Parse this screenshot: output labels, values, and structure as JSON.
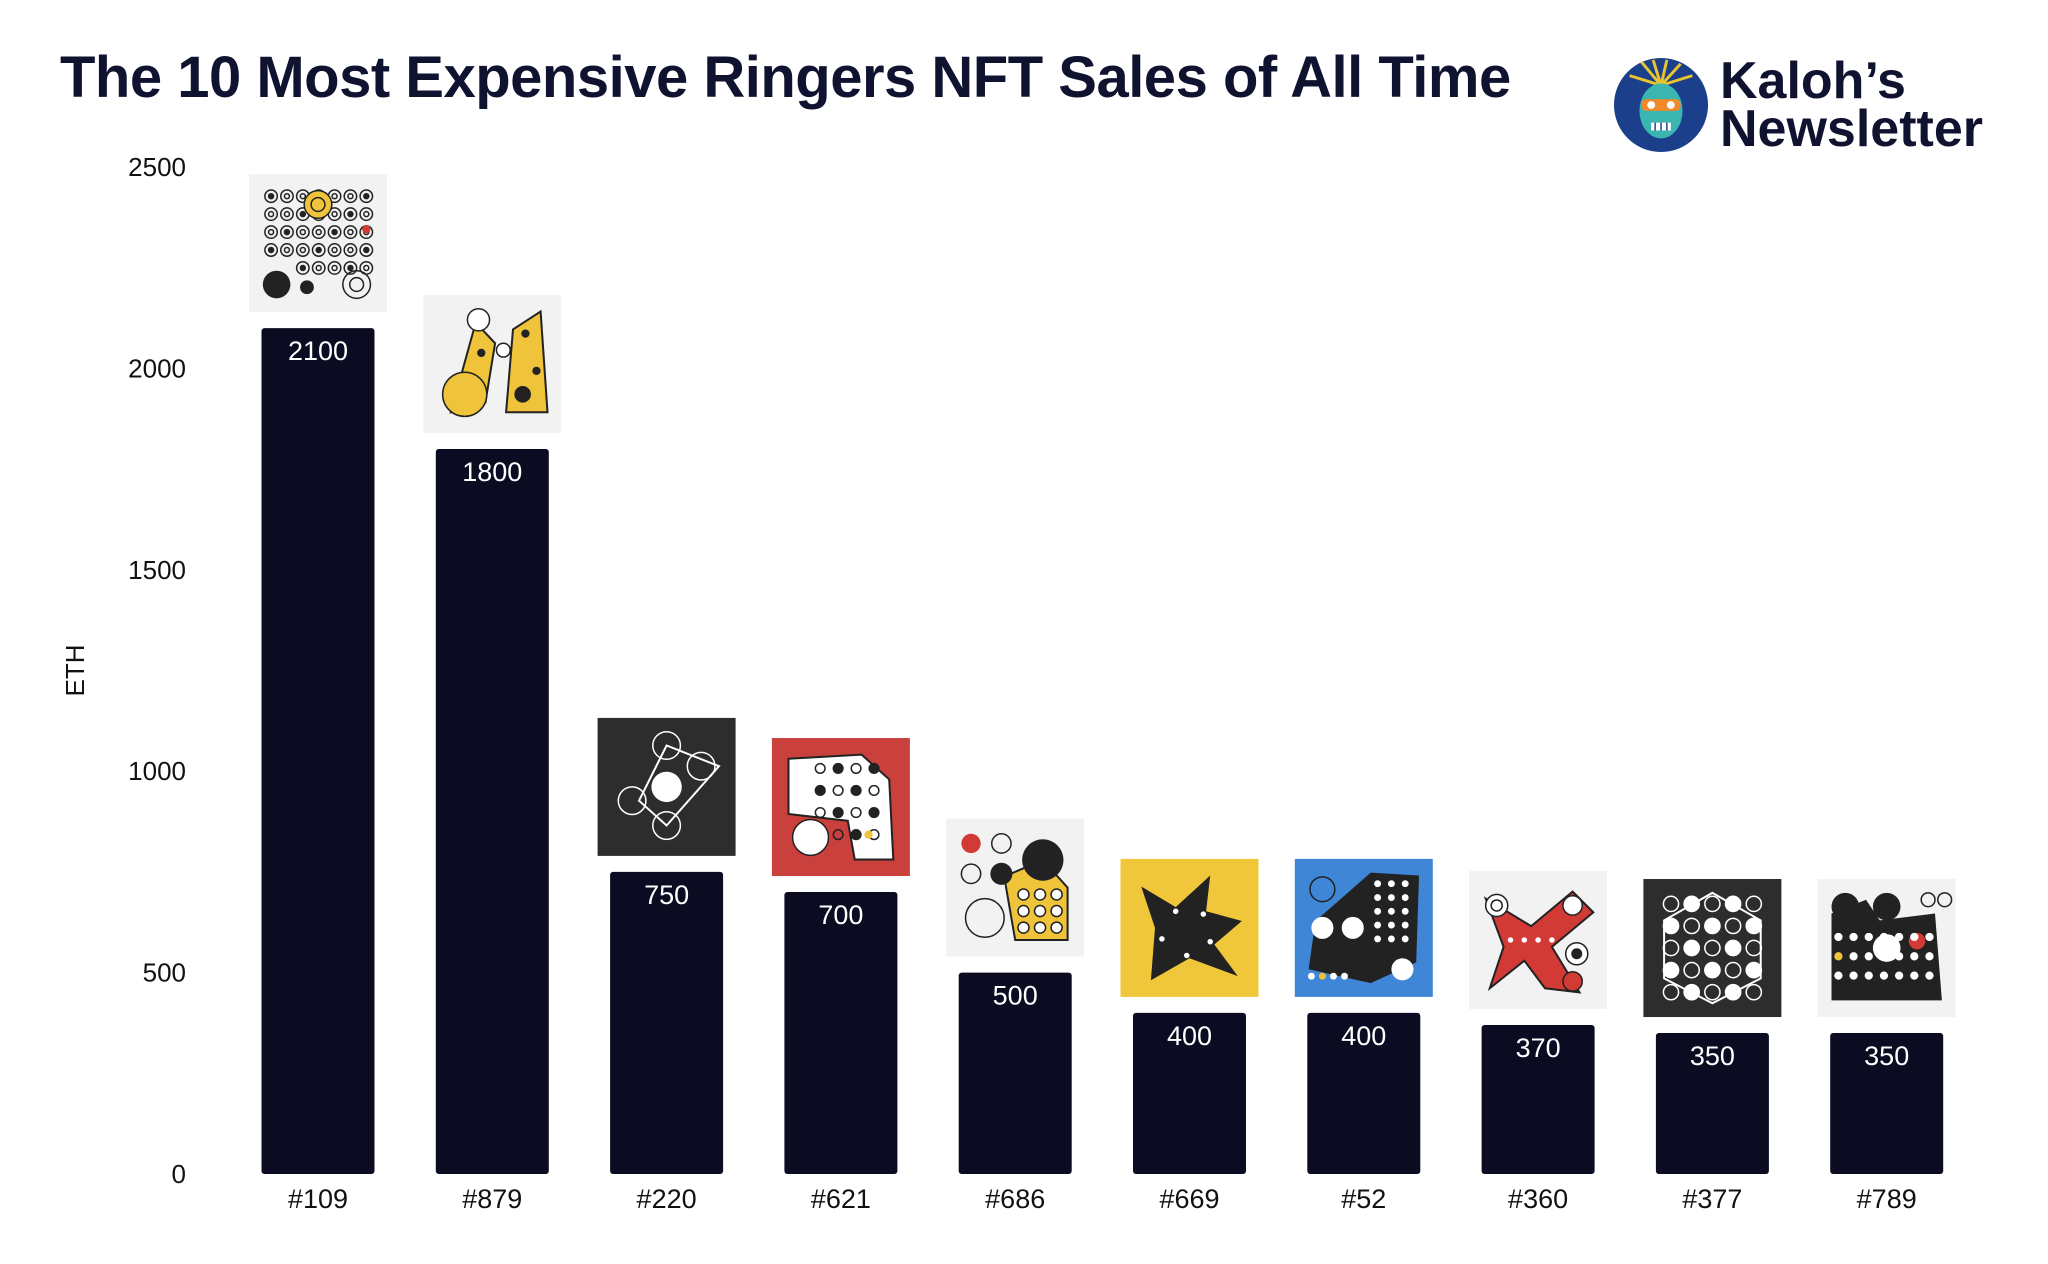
{
  "header": {
    "title": "The 10 Most Expensive Ringers NFT Sales of All Time",
    "brand_line1": "Kaloh’s",
    "brand_line2": "Newsletter"
  },
  "colors": {
    "bar": "#0b0b22",
    "title": "#0f1330",
    "axis_text": "#111111"
  },
  "chart_data": {
    "type": "bar",
    "title": "The 10 Most Expensive Ringers NFT Sales of All Time",
    "xlabel": "",
    "ylabel": "ETH",
    "ylim": [
      0,
      2500
    ],
    "yticks": [
      0,
      500,
      1000,
      1500,
      2000,
      2500
    ],
    "grid": false,
    "categories": [
      "#109",
      "#879",
      "#220",
      "#621",
      "#686",
      "#669",
      "#52",
      "#360",
      "#377",
      "#789"
    ],
    "values": [
      2100,
      1800,
      750,
      700,
      500,
      400,
      400,
      370,
      350,
      350
    ],
    "data_labels": [
      "2100",
      "1800",
      "750",
      "700",
      "500",
      "400",
      "400",
      "370",
      "350",
      "350"
    ],
    "thumbnails": [
      {
        "style": "rings-grid",
        "bg": "#f2f2f2"
      },
      {
        "style": "yellow-blobs",
        "bg": "#f2f2f2"
      },
      {
        "style": "dark-triangle",
        "bg": "#2d2d2d"
      },
      {
        "style": "red-white",
        "bg": "#c9403c"
      },
      {
        "style": "yellow-dots",
        "bg": "#f2f2f2"
      },
      {
        "style": "yellow-star",
        "bg": "#f0c63a"
      },
      {
        "style": "blue-shape",
        "bg": "#3f87d6"
      },
      {
        "style": "red-x",
        "bg": "#f2f2f2"
      },
      {
        "style": "dark-hex",
        "bg": "#2d2d2d"
      },
      {
        "style": "dark-dots",
        "bg": "#f2f2f2"
      }
    ]
  }
}
